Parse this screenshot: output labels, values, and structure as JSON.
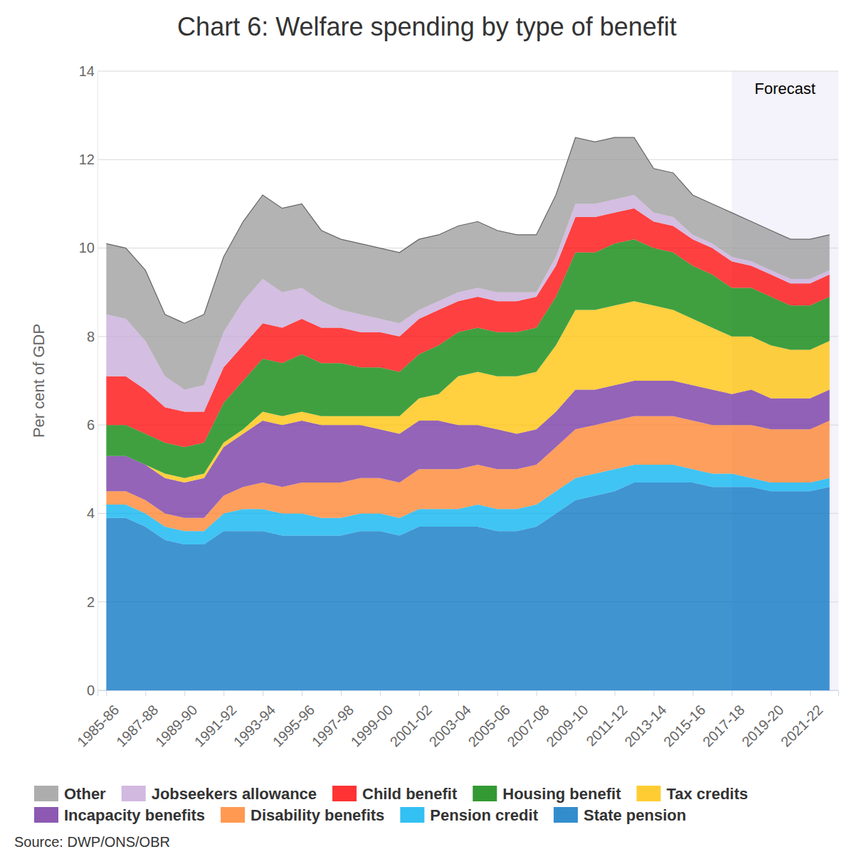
{
  "chart_data": {
    "type": "area",
    "title": "Chart 6: Welfare spending by type of benefit",
    "y_label": "Per cent of GDP",
    "source": "Source: DWP/ONS/OBR",
    "stacked": true,
    "grid": true,
    "legend": "bottom",
    "annotations": [
      {
        "text": "Forecast",
        "from": "2017-18"
      }
    ],
    "categories": [
      "1985-86",
      null,
      "1987-88",
      null,
      "1989-90",
      null,
      "1991-92",
      null,
      "1993-94",
      null,
      "1995-96",
      null,
      "1997-98",
      null,
      "1999-00",
      null,
      "2001-02",
      null,
      "2003-04",
      null,
      "2005-06",
      null,
      "2007-08",
      null,
      "2009-10",
      null,
      "2011-12",
      null,
      "2013-14",
      null,
      "2015-16",
      null,
      "2017-18",
      null,
      "2019-20",
      null,
      "2021-22",
      null
    ],
    "ylim": [
      0,
      14
    ],
    "yticks": [
      0,
      2,
      4,
      6,
      8,
      10,
      12,
      14
    ],
    "series": [
      {
        "name": "State pension",
        "color": "#0070c0",
        "values": [
          3.9,
          3.9,
          3.7,
          3.4,
          3.3,
          3.3,
          3.6,
          3.6,
          3.6,
          3.5,
          3.5,
          3.5,
          3.5,
          3.6,
          3.6,
          3.5,
          3.7,
          3.7,
          3.7,
          3.7,
          3.6,
          3.6,
          3.7,
          4.0,
          4.3,
          4.4,
          4.5,
          4.7,
          4.7,
          4.7,
          4.7,
          4.6,
          4.6,
          4.6,
          4.5,
          4.5,
          4.5,
          4.6
        ]
      },
      {
        "name": "Pension credit",
        "color": "#00b0f0",
        "values": [
          0.3,
          0.3,
          0.3,
          0.3,
          0.3,
          0.3,
          0.4,
          0.5,
          0.5,
          0.5,
          0.5,
          0.4,
          0.4,
          0.4,
          0.4,
          0.4,
          0.4,
          0.4,
          0.4,
          0.5,
          0.5,
          0.5,
          0.5,
          0.5,
          0.5,
          0.5,
          0.5,
          0.4,
          0.4,
          0.4,
          0.3,
          0.3,
          0.3,
          0.2,
          0.2,
          0.2,
          0.2,
          0.2
        ]
      },
      {
        "name": "Disability benefits",
        "color": "#ff7f27",
        "values": [
          0.3,
          0.3,
          0.3,
          0.3,
          0.3,
          0.3,
          0.4,
          0.5,
          0.6,
          0.6,
          0.7,
          0.8,
          0.8,
          0.8,
          0.8,
          0.8,
          0.9,
          0.9,
          0.9,
          0.9,
          0.9,
          0.9,
          0.9,
          1.0,
          1.1,
          1.1,
          1.1,
          1.1,
          1.1,
          1.1,
          1.1,
          1.1,
          1.1,
          1.2,
          1.2,
          1.2,
          1.2,
          1.3
        ]
      },
      {
        "name": "Incapacity benefits",
        "color": "#7030a0",
        "values": [
          0.8,
          0.8,
          0.8,
          0.8,
          0.8,
          0.9,
          1.1,
          1.2,
          1.4,
          1.4,
          1.4,
          1.3,
          1.3,
          1.2,
          1.1,
          1.1,
          1.1,
          1.1,
          1.0,
          0.9,
          0.9,
          0.8,
          0.8,
          0.8,
          0.9,
          0.8,
          0.8,
          0.8,
          0.8,
          0.8,
          0.8,
          0.8,
          0.7,
          0.8,
          0.7,
          0.7,
          0.7,
          0.7
        ]
      },
      {
        "name": "Tax credits",
        "color": "#ffc000",
        "values": [
          0,
          0,
          0,
          0.1,
          0.1,
          0.1,
          0.1,
          0.1,
          0.2,
          0.2,
          0.2,
          0.2,
          0.2,
          0.2,
          0.3,
          0.4,
          0.5,
          0.6,
          1.1,
          1.2,
          1.2,
          1.3,
          1.3,
          1.5,
          1.8,
          1.8,
          1.8,
          1.8,
          1.7,
          1.6,
          1.5,
          1.4,
          1.3,
          1.2,
          1.2,
          1.1,
          1.1,
          1.1
        ]
      },
      {
        "name": "Housing benefit",
        "color": "#008000",
        "values": [
          0.7,
          0.7,
          0.7,
          0.7,
          0.7,
          0.7,
          0.9,
          1.1,
          1.2,
          1.2,
          1.3,
          1.2,
          1.2,
          1.1,
          1.1,
          1.0,
          1.0,
          1.1,
          1.0,
          1.0,
          1.0,
          1.0,
          1.0,
          1.1,
          1.3,
          1.3,
          1.4,
          1.4,
          1.3,
          1.3,
          1.2,
          1.2,
          1.1,
          1.1,
          1.1,
          1.0,
          1.0,
          1.0
        ]
      },
      {
        "name": "Child benefit",
        "color": "#ff0000",
        "values": [
          1.1,
          1.1,
          1.0,
          0.8,
          0.8,
          0.7,
          0.8,
          0.8,
          0.8,
          0.8,
          0.8,
          0.8,
          0.8,
          0.8,
          0.8,
          0.8,
          0.8,
          0.8,
          0.7,
          0.7,
          0.7,
          0.7,
          0.7,
          0.7,
          0.8,
          0.8,
          0.7,
          0.7,
          0.6,
          0.6,
          0.6,
          0.6,
          0.6,
          0.5,
          0.5,
          0.5,
          0.5,
          0.5
        ]
      },
      {
        "name": "Jobseekers allowance",
        "color": "#c5a8d8",
        "values": [
          1.4,
          1.3,
          1.1,
          0.7,
          0.5,
          0.6,
          0.8,
          1.0,
          1.0,
          0.8,
          0.7,
          0.6,
          0.4,
          0.4,
          0.3,
          0.3,
          0.2,
          0.2,
          0.2,
          0.2,
          0.2,
          0.2,
          0.1,
          0.2,
          0.3,
          0.3,
          0.3,
          0.3,
          0.2,
          0.2,
          0.1,
          0.1,
          0.1,
          0.1,
          0.1,
          0.1,
          0.1,
          0.1
        ]
      },
      {
        "name": "Other",
        "color": "#999999",
        "values": [
          1.6,
          1.6,
          1.6,
          1.4,
          1.5,
          1.6,
          1.7,
          1.8,
          1.9,
          1.9,
          1.9,
          1.6,
          1.6,
          1.6,
          1.6,
          1.6,
          1.6,
          1.5,
          1.5,
          1.5,
          1.4,
          1.3,
          1.3,
          1.4,
          1.5,
          1.4,
          1.4,
          1.3,
          1.0,
          1.0,
          0.9,
          0.9,
          1.0,
          0.9,
          0.9,
          0.9,
          0.9,
          0.8
        ]
      }
    ]
  }
}
